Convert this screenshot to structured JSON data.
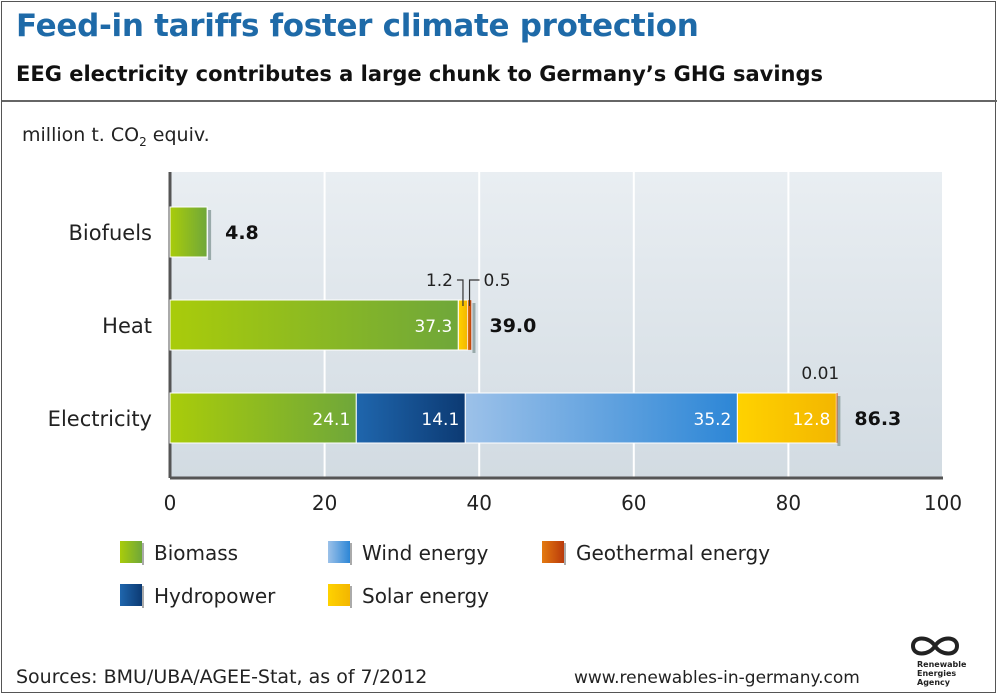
{
  "title": "Feed-in tariffs foster climate protection",
  "subtitle": "EEG electricity contributes a large chunk to Germany’s GHG savings",
  "unit_prefix": "million t. CO",
  "unit_sub": "2",
  "unit_suffix": " equiv.",
  "sources": "Sources: BMU/UBA/AGEE-Stat, as of 7/2012",
  "website": "www.renewables-in-germany.com",
  "logo": {
    "line1": "Renewable",
    "line2": "Energies",
    "line3": "Agency"
  },
  "colors": {
    "biomass": "#8fbf1e",
    "hydropower": "#0d4f91",
    "wind": "#4a97d9",
    "solar": "#f5c400",
    "geothermal": "#d2570e"
  },
  "chart_data": {
    "type": "bar",
    "orientation": "horizontal",
    "stacked": true,
    "categories": [
      "Biofuels",
      "Heat",
      "Electricity"
    ],
    "xlim": [
      0,
      100
    ],
    "xticks": [
      "0",
      "20",
      "40",
      "60",
      "80",
      "100"
    ],
    "grid": true,
    "series": [
      {
        "name": "Biomass",
        "values": [
          4.8,
          37.3,
          24.1
        ],
        "labels": [
          "",
          "37.3",
          "24.1"
        ]
      },
      {
        "name": "Hydropower",
        "values": [
          0,
          0,
          14.1
        ],
        "labels": [
          "",
          "",
          "14.1"
        ]
      },
      {
        "name": "Wind energy",
        "values": [
          0,
          0,
          35.2
        ],
        "labels": [
          "",
          "",
          "35.2"
        ]
      },
      {
        "name": "Solar energy",
        "values": [
          0,
          1.2,
          12.8
        ],
        "labels": [
          "",
          "1.2",
          "12.8"
        ]
      },
      {
        "name": "Geothermal energy",
        "values": [
          0,
          0.5,
          0.01
        ],
        "labels": [
          "",
          "0.5",
          "0.01"
        ]
      }
    ],
    "totals": [
      "4.8",
      "39.0",
      "86.3"
    ],
    "legend": [
      "Biomass",
      "Wind energy",
      "Geothermal energy",
      "Hydropower",
      "Solar energy"
    ]
  }
}
